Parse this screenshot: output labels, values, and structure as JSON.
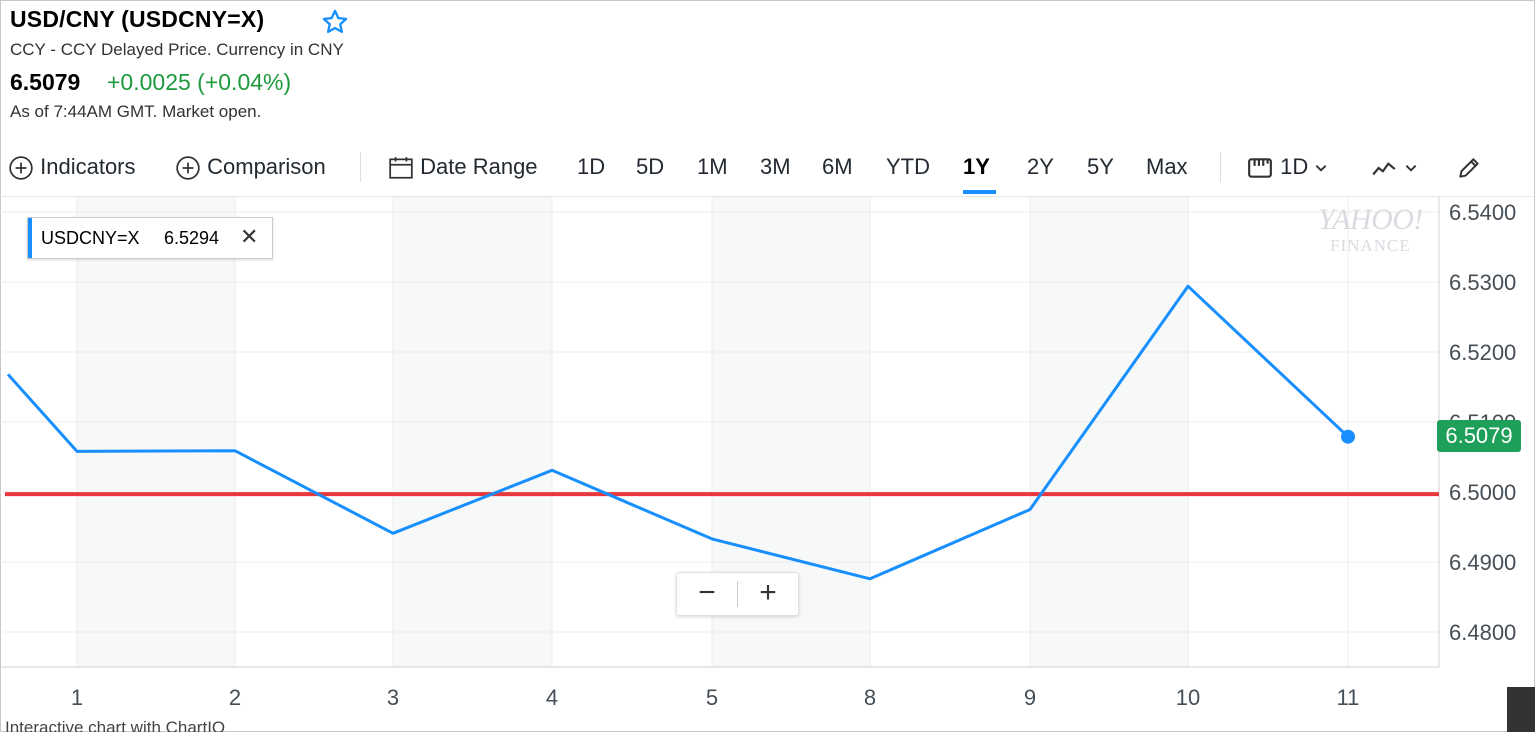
{
  "header": {
    "title": "USD/CNY (USDCNY=X)",
    "subtitle": "CCY - CCY Delayed Price. Currency in CNY",
    "price": "6.5079",
    "change": "+0.0025 (+0.04%)",
    "as_of": "As of 7:44AM GMT. Market open."
  },
  "toolbar": {
    "indicators": "Indicators",
    "comparison": "Comparison",
    "date_range": "Date Range",
    "ranges": [
      "1D",
      "5D",
      "1M",
      "3M",
      "6M",
      "YTD",
      "1Y",
      "2Y",
      "5Y",
      "Max"
    ],
    "selected_range": "1Y",
    "interval": "1D"
  },
  "legend": {
    "symbol": "USDCNY=X",
    "value": "6.5294"
  },
  "price_tag": "6.5079",
  "watermark": {
    "line1": "YAHOO!",
    "line2": "FINANCE"
  },
  "footer": "Interactive chart with ChartIQ",
  "colors": {
    "line": "#188fff",
    "reference": "#e8383d",
    "positive": "#1d9a3c",
    "tag": "#1ea05a"
  },
  "chart_data": {
    "type": "line",
    "x": [
      "1",
      "2",
      "3",
      "4",
      "5",
      "8",
      "9",
      "10",
      "11"
    ],
    "series": [
      {
        "name": "USDCNY=X",
        "values": [
          6.5058,
          6.5059,
          6.4941,
          6.5031,
          6.4933,
          6.4876,
          6.4975,
          6.5294,
          6.5079
        ]
      }
    ],
    "lead_in_value": 6.5168,
    "reference_line": 6.4997,
    "y_ticks": [
      "6.5400",
      "6.5300",
      "6.5200",
      "6.5100",
      "6.5000",
      "6.4900",
      "6.4800"
    ],
    "ylim": [
      6.475,
      6.54
    ],
    "y_axis_side": "right",
    "grid": true
  }
}
